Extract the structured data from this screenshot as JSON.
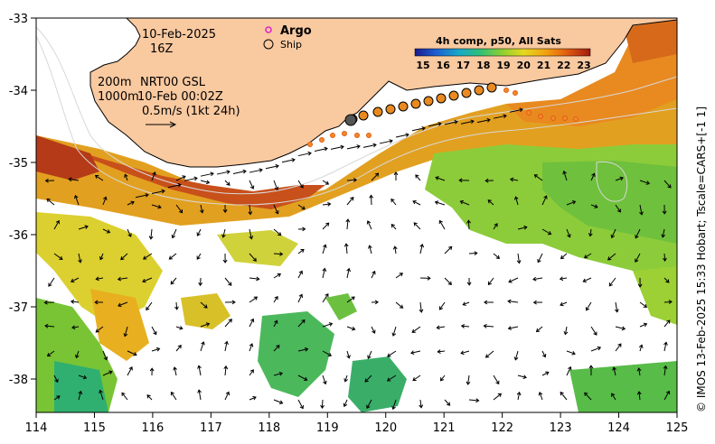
{
  "map": {
    "date": "10-Feb-2025",
    "hour": "16Z",
    "isobath_label": "200m",
    "isobath2_label": "1000m",
    "model_label": "NRT00 GSL",
    "model_time": "10-Feb 00:02Z",
    "vector_scale": "0.5m/s (1kt 24h)",
    "legend": {
      "argo": "Argo",
      "ship": "Ship"
    },
    "colorbar": {
      "title": "4h comp, p50, All Sats",
      "ticks": [
        "15",
        "16",
        "17",
        "18",
        "19",
        "20",
        "21",
        "22",
        "23"
      ]
    },
    "credit": "© IMOS 13-Feb-2025 15:33 Hobart; Tscale=CARS+[-1 1]",
    "x_ticks": [
      "114",
      "115",
      "116",
      "117",
      "118",
      "119",
      "120",
      "121",
      "122",
      "123",
      "124",
      "125"
    ],
    "y_ticks": [
      "-33",
      "-34",
      "-35",
      "-36",
      "-37",
      "-38"
    ],
    "colors": {
      "land": "#f9c9a0",
      "coast": "#000000"
    }
  }
}
